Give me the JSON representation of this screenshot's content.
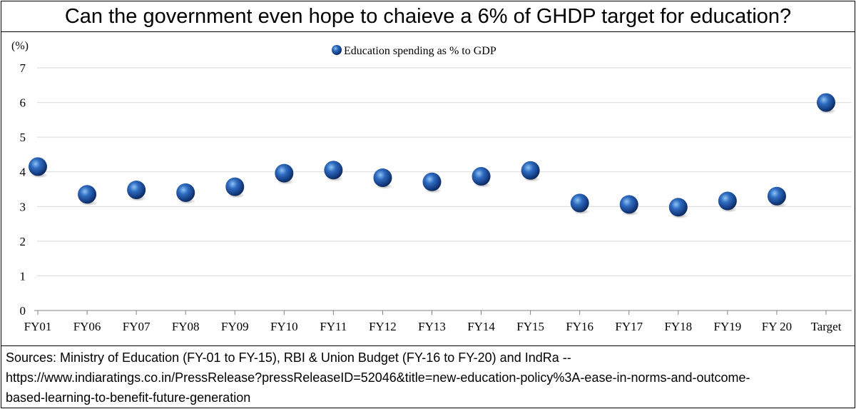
{
  "title": "Can the government even hope to chaieve a 6% of GHDP target for education?",
  "sources": {
    "line1": "Sources: Ministry of Education (FY-01 to FY-15), RBI & Union Budget (FY-16 to FY-20) and IndRa --",
    "line2": "https://www.indiaratings.co.in/PressRelease?pressReleaseID=52046&title=new-education-policy%3A-ease-in-norms-and-outcome-",
    "line3": "based-learning-to-benefit-future-generation"
  },
  "chart_data": {
    "type": "scatter",
    "title": "",
    "ylabel": "(%)",
    "xlabel": "",
    "categories": [
      "FY01",
      "FY06",
      "FY07",
      "FY08",
      "FY09",
      "FY10",
      "FY11",
      "FY12",
      "FY13",
      "FY14",
      "FY15",
      "FY16",
      "FY17",
      "FY18",
      "FY19",
      "FY 20",
      "Target"
    ],
    "series": [
      {
        "name": "Education spending as % to GDP",
        "values": [
          4.15,
          3.35,
          3.48,
          3.4,
          3.57,
          3.96,
          4.05,
          3.83,
          3.71,
          3.87,
          4.04,
          3.1,
          3.06,
          2.98,
          3.16,
          3.3,
          6.0
        ]
      }
    ],
    "ylim": [
      0,
      7
    ],
    "yticks": [
      0,
      1,
      2,
      3,
      4,
      5,
      6,
      7
    ],
    "grid": true,
    "legend": "top-center",
    "colors": {
      "marker": "#1f4e96",
      "marker_highlight": "#6fa8e8",
      "marker_dark": "#0a2350",
      "grid": "#d9d9d9",
      "axis": "#808080"
    }
  }
}
